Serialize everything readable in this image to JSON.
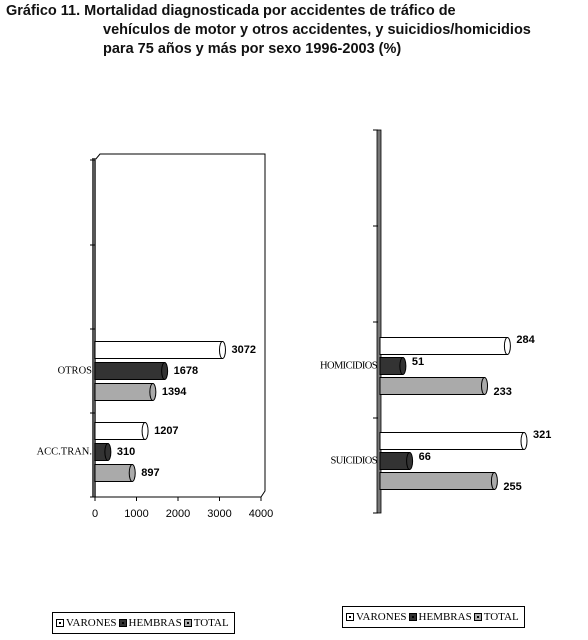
{
  "title": {
    "line1": "Gráfico 11. Mortalidad diagnosticada por accidentes de tráfico de",
    "line2": "vehículos de motor y otros accidentes, y suicidios/homicidios",
    "line3": "para 75 años y más por sexo 1996-2003 (%)"
  },
  "colors": {
    "varones": "#ffffff",
    "hembras": "#333333",
    "total": "#aaaaaa"
  },
  "legend": {
    "items": [
      "VARONES",
      "HEMBRAS",
      "TOTAL"
    ]
  },
  "chart_data": [
    {
      "type": "bar",
      "orientation": "horizontal",
      "categories": [
        "OTROS",
        "ACC.TRAN."
      ],
      "series": [
        {
          "name": "VARONES",
          "values": [
            3072,
            1207
          ]
        },
        {
          "name": "HEMBRAS",
          "values": [
            1678,
            310
          ]
        },
        {
          "name": "TOTAL",
          "values": [
            1394,
            897
          ]
        }
      ],
      "xlim": [
        0,
        4000
      ],
      "xticks": [
        "0",
        "1000",
        "2000",
        "3000",
        "4000"
      ],
      "legend_position": "bottom"
    },
    {
      "type": "bar",
      "orientation": "horizontal",
      "categories": [
        "HOMICIDIOS",
        "SUICIDIOS"
      ],
      "series": [
        {
          "name": "VARONES",
          "values": [
            284,
            321
          ]
        },
        {
          "name": "HEMBRAS",
          "values": [
            51,
            66
          ]
        },
        {
          "name": "TOTAL",
          "values": [
            233,
            255
          ]
        }
      ],
      "xlim": [
        0,
        350
      ],
      "legend_position": "bottom"
    }
  ]
}
